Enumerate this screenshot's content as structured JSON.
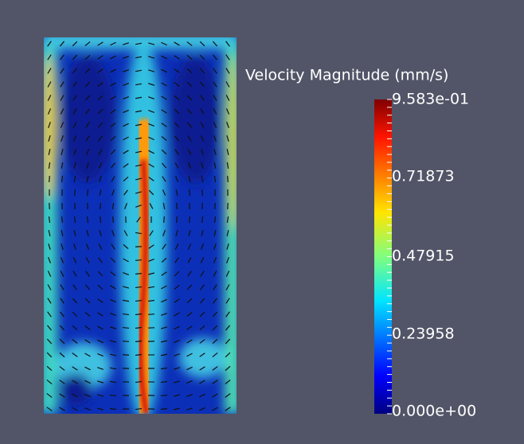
{
  "colorbar": {
    "title": "Velocity Magnitude (mm/s)",
    "ticks": [
      "9.583e-01",
      "0.71873",
      "0.47915",
      "0.23958",
      "0.000e+00"
    ]
  }
}
